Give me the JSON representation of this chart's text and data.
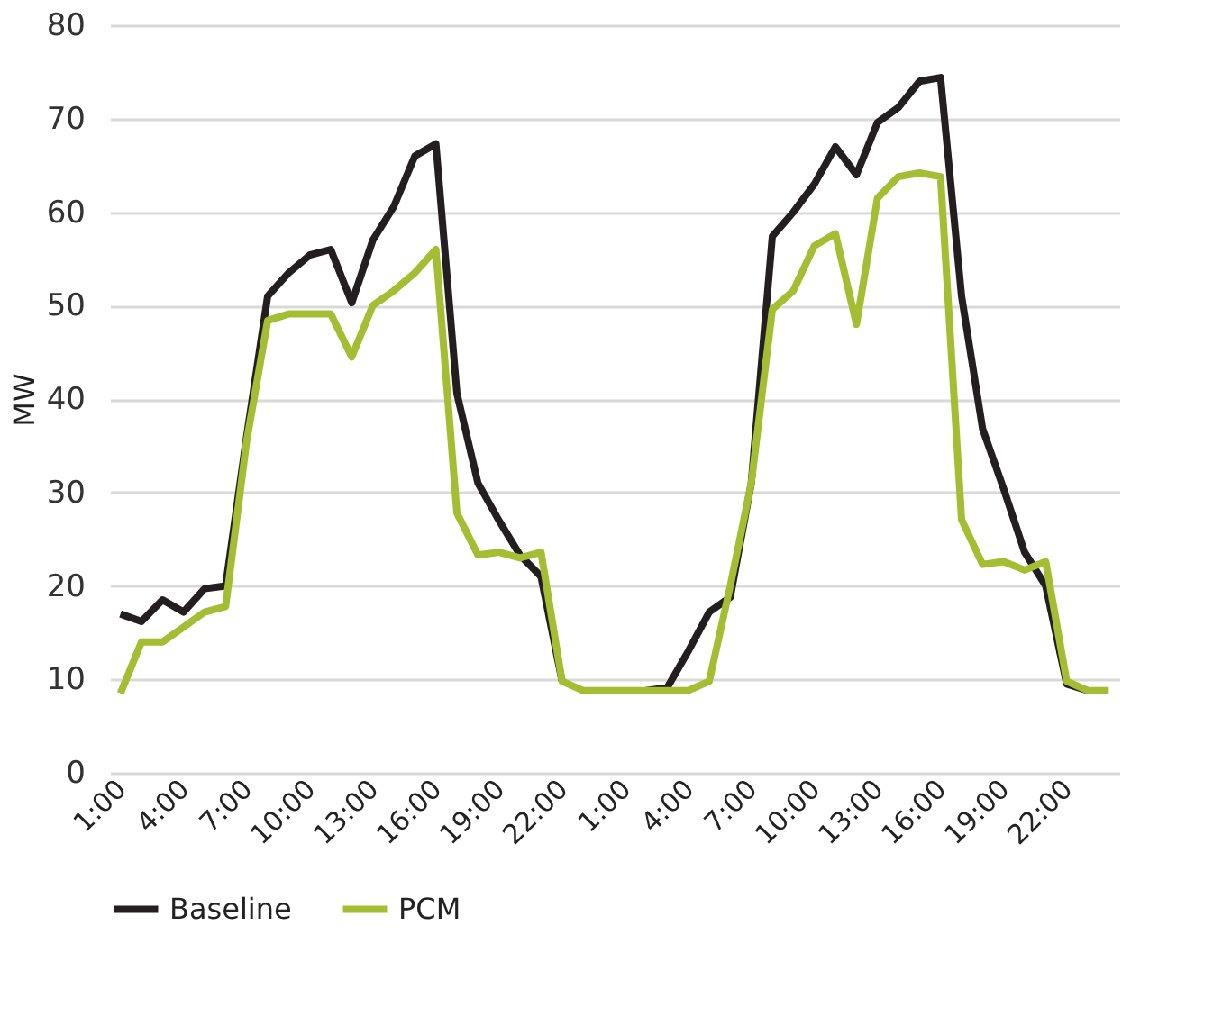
{
  "chart_data": {
    "type": "line",
    "ylabel": "MW",
    "categories": [
      "1:00",
      null,
      null,
      "4:00",
      null,
      null,
      "7:00",
      null,
      null,
      "10:00",
      null,
      null,
      "13:00",
      null,
      null,
      "16:00",
      null,
      null,
      "19:00",
      null,
      null,
      "22:00",
      null,
      null,
      "1:00",
      null,
      null,
      "4:00",
      null,
      null,
      "7:00",
      null,
      null,
      "10:00",
      null,
      null,
      "13:00",
      null,
      null,
      "16:00",
      null,
      null,
      "19:00",
      null,
      null,
      "22:00",
      null,
      null
    ],
    "series": [
      {
        "name": "Baseline",
        "color": "#231f20",
        "values": [
          17,
          16.2,
          18.5,
          17.2,
          19.7,
          20,
          36,
          51,
          53.5,
          55.4,
          56,
          50.3,
          57,
          60.6,
          66,
          67.3,
          40.6,
          31,
          27,
          23.3,
          21,
          9.8,
          null,
          null,
          null,
          8.8,
          9.1,
          13,
          17.2,
          18.8,
          31,
          57.4,
          60,
          63,
          67,
          64,
          69.6,
          71.2,
          74,
          74.4,
          51,
          36.8,
          30.4,
          23.6,
          20,
          9.5,
          8.8,
          null
        ]
      },
      {
        "name": "PCM",
        "color": "#a4bd32",
        "values": [
          8.5,
          14,
          14,
          15.6,
          17.2,
          17.8,
          35.5,
          48.4,
          49.1,
          49.1,
          49.1,
          44.5,
          50,
          51.6,
          53.5,
          56,
          27.8,
          23.3,
          23.6,
          23,
          23.6,
          9.8,
          8.8,
          8.8,
          8.8,
          8.8,
          8.8,
          8.8,
          9.8,
          20,
          31,
          49.6,
          51.6,
          56.4,
          57.7,
          48,
          61.5,
          63.8,
          64.2,
          63.8,
          27.1,
          22.3,
          22.6,
          21.7,
          22.6,
          9.8,
          8.8,
          8.8
        ]
      }
    ],
    "ylim": [
      0,
      80
    ],
    "yticks": [
      0,
      10,
      20,
      30,
      40,
      50,
      60,
      70,
      80
    ],
    "grid": "y",
    "legend": "bottom",
    "marker": "none",
    "line_style": "solid"
  }
}
